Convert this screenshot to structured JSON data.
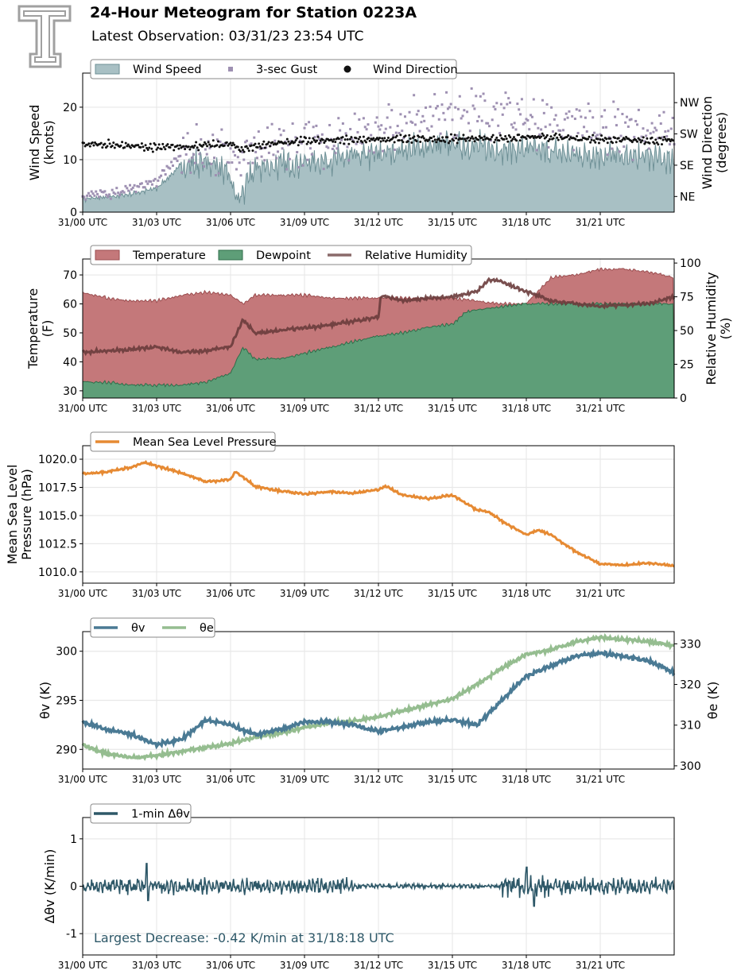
{
  "header": {
    "title": "24-Hour Meteogram for Station 0223A",
    "subtitle": "Latest Observation: 03/31/23 23:54 UTC",
    "logo_icon": "texas-tech-double-t-logo-icon"
  },
  "colors": {
    "wind_fill": "#a8c0c4",
    "wind_line": "#6e9096",
    "gust": "#9e90b2",
    "direction": "#111111",
    "temp_fill": "#c4787a",
    "temp_edge": "#9b4e50",
    "dew_fill": "#5e9e78",
    "dew_edge": "#2f6e4a",
    "rh": "#8a6a6a",
    "rh_dark": "#6a3c3c",
    "pressure": "#e68a33",
    "theta_v": "#4a7a94",
    "theta_e": "#95bd90",
    "dtheta": "#2e5868",
    "annotation": "#2e5868"
  },
  "x_axis": {
    "ticks": [
      0,
      3,
      6,
      9,
      12,
      15,
      18,
      21
    ],
    "tick_labels": [
      "31/00 UTC",
      "31/03 UTC",
      "31/06 UTC",
      "31/09 UTC",
      "31/12 UTC",
      "31/15 UTC",
      "31/18 UTC",
      "31/21 UTC"
    ],
    "range_hours": [
      0,
      24
    ]
  },
  "chart_data": [
    {
      "type": "area",
      "id": "wind",
      "legend": [
        "Wind Speed",
        "3-sec Gust",
        "Wind Direction"
      ],
      "legend_position": "top-left",
      "ylabel": "Wind Speed\n(knots)",
      "y2label": "Wind Direction\n(degrees)",
      "ylim": [
        0,
        26.5
      ],
      "yticks": [
        0,
        10,
        20
      ],
      "y2lim": [
        0,
        400
      ],
      "y2ticks": [
        45,
        135,
        225,
        315
      ],
      "y2ticklabels": [
        "NE",
        "SE",
        "SW",
        "NW"
      ],
      "grid": true,
      "series": [
        {
          "name": "Wind Speed",
          "x": [
            0,
            1,
            2,
            3,
            4,
            5,
            5.5,
            6,
            6.3,
            7,
            8,
            9,
            10,
            11,
            12,
            13,
            14,
            15,
            16,
            17,
            18,
            19,
            20,
            21,
            22,
            23,
            24
          ],
          "values": [
            2.5,
            2.8,
            3.5,
            4.5,
            9,
            9.5,
            9,
            6,
            2,
            8.5,
            9,
            9.5,
            10,
            10.5,
            11,
            12,
            12.5,
            13,
            12.5,
            12,
            12,
            11.5,
            11,
            11,
            10.5,
            10.5,
            10
          ]
        },
        {
          "name": "3-sec Gust",
          "x": [
            0,
            1,
            2,
            3,
            4,
            5,
            6,
            7,
            8,
            9,
            10,
            11,
            12,
            13,
            14,
            15,
            16,
            17,
            18,
            19,
            20,
            21,
            22,
            23,
            24
          ],
          "values": [
            3.2,
            3.5,
            4.5,
            6,
            11,
            12,
            11,
            12,
            12,
            13,
            14,
            15,
            16,
            17,
            18,
            19,
            19,
            19,
            18,
            17,
            17,
            16,
            16,
            15,
            15
          ]
        },
        {
          "name": "Wind Direction",
          "x": [
            0,
            1,
            2,
            3,
            4,
            5,
            6,
            6.5,
            7,
            8,
            9,
            10,
            11,
            12,
            13,
            14,
            15,
            16,
            17,
            18,
            19,
            20,
            21,
            22,
            23,
            24
          ],
          "values": [
            195,
            195,
            190,
            185,
            188,
            192,
            195,
            180,
            190,
            200,
            205,
            205,
            210,
            208,
            210,
            210,
            210,
            212,
            212,
            215,
            215,
            212,
            210,
            210,
            205,
            205
          ]
        }
      ]
    },
    {
      "type": "area",
      "id": "temp",
      "legend": [
        "Temperature",
        "Dewpoint",
        "Relative Humidity"
      ],
      "legend_position": "top-left",
      "ylabel": "Temperature\n(F)",
      "y2label": "Relative Humidity\n(%)",
      "ylim": [
        27.5,
        75.5
      ],
      "yticks": [
        30,
        40,
        50,
        60,
        70
      ],
      "y2lim": [
        0,
        103
      ],
      "y2ticks": [
        0,
        25,
        50,
        75,
        100
      ],
      "grid": true,
      "series": [
        {
          "name": "Temperature",
          "x": [
            0,
            1,
            2,
            3,
            4,
            5,
            6,
            6.5,
            7,
            8,
            9,
            10,
            11,
            12,
            13,
            14,
            15,
            16,
            17,
            18,
            19,
            20,
            21,
            22,
            23,
            24
          ],
          "values": [
            64,
            62,
            61,
            61,
            63,
            64,
            63,
            60,
            63,
            63,
            63,
            62,
            62,
            62,
            62,
            62,
            62,
            61,
            60,
            60,
            69,
            70,
            72,
            72,
            71,
            69
          ]
        },
        {
          "name": "Dewpoint",
          "x": [
            0,
            1,
            2,
            3,
            4,
            5,
            6,
            6.5,
            7,
            8,
            9,
            10,
            11,
            12,
            13,
            14,
            15,
            15.5,
            16,
            17,
            18,
            19,
            20,
            21,
            22,
            23,
            24
          ],
          "values": [
            33,
            33,
            32,
            32,
            32,
            33,
            36,
            45,
            41,
            41,
            43,
            45,
            47,
            49,
            50,
            52,
            53,
            57,
            58,
            59,
            60,
            60,
            60,
            60,
            60,
            60,
            60
          ]
        },
        {
          "name": "Relative Humidity",
          "x": [
            0,
            1,
            2,
            3,
            4,
            5,
            6,
            6.5,
            7,
            8,
            9,
            10,
            11,
            12,
            12.1,
            13,
            14,
            15,
            16,
            16.5,
            17,
            18,
            19,
            20,
            21,
            22,
            23,
            24
          ],
          "values": [
            34,
            35,
            36,
            38,
            34,
            35,
            38,
            58,
            48,
            50,
            52,
            54,
            57,
            60,
            76,
            72,
            74,
            75,
            79,
            88,
            86,
            79,
            72,
            70,
            68,
            69,
            70,
            75
          ]
        }
      ]
    },
    {
      "type": "line",
      "id": "pressure",
      "legend": [
        "Mean Sea Level Pressure"
      ],
      "legend_position": "top-left",
      "ylabel": "Mean Sea Level\nPressure (hPa)",
      "ylim": [
        1009.0,
        1021.2
      ],
      "yticks": [
        1010.0,
        1012.5,
        1015.0,
        1017.5,
        1020.0
      ],
      "yticklabels": [
        "1010.0",
        "1012.5",
        "1015.0",
        "1017.5",
        "1020.0"
      ],
      "grid": true,
      "series": [
        {
          "name": "Mean Sea Level Pressure",
          "x": [
            0,
            1,
            2,
            2.5,
            3,
            4,
            5,
            6,
            6.2,
            7,
            8,
            9,
            10,
            11,
            12,
            12.3,
            13,
            14,
            15,
            16,
            16.5,
            17,
            18,
            18.5,
            19,
            20,
            21,
            22,
            23,
            24
          ],
          "values": [
            1018.7,
            1018.9,
            1019.3,
            1019.7,
            1019.4,
            1018.8,
            1018.0,
            1018.2,
            1018.9,
            1017.6,
            1017.2,
            1016.9,
            1017.1,
            1017.0,
            1017.3,
            1017.6,
            1016.8,
            1016.5,
            1016.8,
            1015.5,
            1015.3,
            1014.5,
            1013.3,
            1013.7,
            1013.3,
            1011.8,
            1010.7,
            1010.6,
            1010.8,
            1010.5
          ]
        }
      ]
    },
    {
      "type": "line",
      "id": "theta",
      "legend": [
        "θv",
        "θe"
      ],
      "legend_position": "top-left",
      "ylabel": "θv (K)",
      "y2label": "θe (K)",
      "ylim": [
        288,
        302
      ],
      "yticks": [
        290,
        295,
        300
      ],
      "y2lim": [
        299.2,
        333
      ],
      "y2ticks": [
        300,
        310,
        320,
        330
      ],
      "grid": true,
      "series": [
        {
          "name": "θv",
          "x": [
            0,
            1,
            2,
            3,
            4,
            5,
            6,
            7,
            8,
            9,
            10,
            11,
            12,
            13,
            14,
            15,
            16,
            17,
            18,
            19,
            20,
            21,
            22,
            23,
            24
          ],
          "values": [
            292.8,
            292.0,
            291.5,
            290.5,
            291.0,
            293.0,
            292.5,
            291.5,
            292.0,
            292.8,
            292.8,
            292.5,
            291.8,
            292.3,
            292.8,
            293.0,
            292.5,
            295.0,
            297.5,
            298.5,
            299.5,
            299.8,
            299.5,
            299.0,
            297.8
          ]
        },
        {
          "name": "θe",
          "x": [
            0,
            1,
            2,
            3,
            4,
            5,
            6,
            7,
            8,
            9,
            10,
            11,
            12,
            13,
            14,
            15,
            16,
            17,
            18,
            19,
            20,
            21,
            22,
            23,
            24
          ],
          "values": [
            305,
            303,
            302,
            302.5,
            303.5,
            304.5,
            305.5,
            307,
            308,
            309.5,
            310.5,
            311,
            312,
            313.5,
            315,
            316.5,
            320,
            324,
            327.5,
            328.5,
            330.5,
            331.5,
            331,
            330.5,
            329.5
          ]
        }
      ]
    },
    {
      "type": "line",
      "id": "dtheta",
      "legend": [
        "1-min Δθv"
      ],
      "legend_position": "top-left",
      "ylabel": "Δθv (K/min)",
      "ylim": [
        -1.45,
        1.45
      ],
      "yticks": [
        -1,
        0,
        1
      ],
      "grid": true,
      "annotation": "Largest Decrease: -0.42 K/min at 31/18:18 UTC",
      "series": [
        {
          "name": "1-min Δθv",
          "x": [
            0,
            2.6,
            2.62,
            3,
            6,
            6.5,
            9,
            12,
            15,
            17,
            17.5,
            18,
            18.3,
            18.5,
            21,
            24
          ],
          "values": [
            0.15,
            0.48,
            -0.3,
            0.12,
            0.12,
            0.2,
            0.1,
            0.08,
            0.05,
            0.1,
            0.25,
            0.4,
            -0.42,
            0.15,
            0.1,
            0.1
          ],
          "amplitude_envelope": [
            0.15,
            0.12,
            0.08,
            0.04,
            0.08,
            0.2,
            0.08,
            0.12
          ]
        }
      ]
    }
  ]
}
